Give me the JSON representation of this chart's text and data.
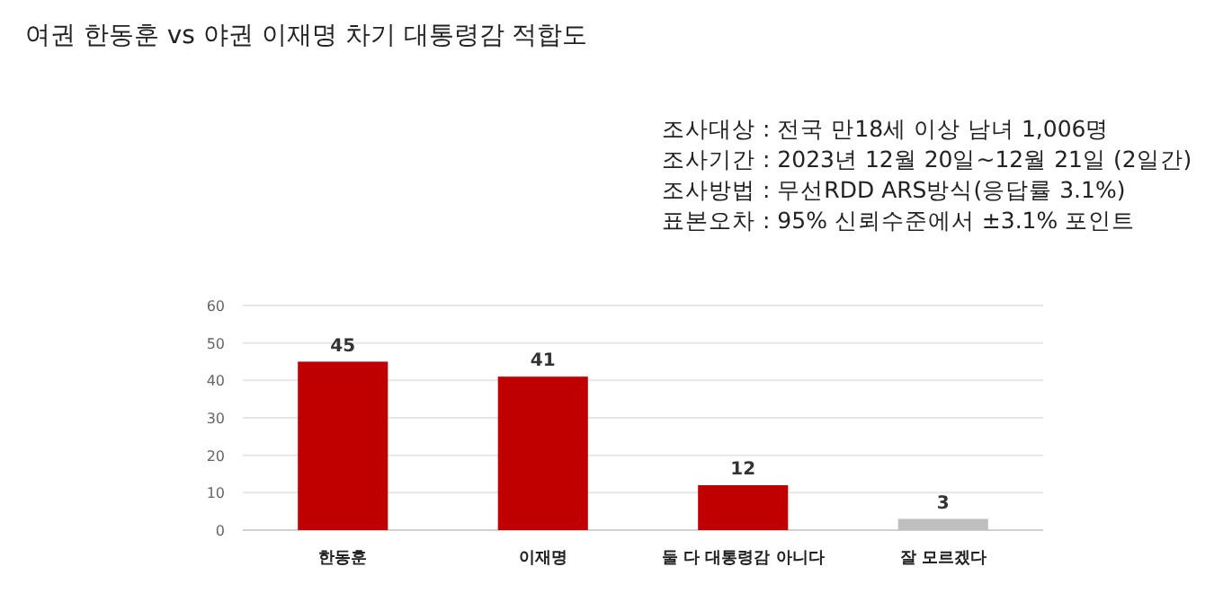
{
  "chart_data": {
    "type": "bar",
    "title": "여권 한동훈 vs 야권 이재명 차기 대통령감 적합도",
    "annotations": [
      "조사대상 : 전국 만18세 이상 남녀 1,006명",
      "조사기간 : 2023년 12월 20일~12월 21일 (2일간)",
      "조사방법 : 무선RDD ARS방식(응답률 3.1%)",
      "표본오차 : 95% 신뢰수준에서 ±3.1% 포인트"
    ],
    "categories": [
      "한동훈",
      "이재명",
      "둘 다 대통령감 아니다",
      "잘 모르겠다"
    ],
    "values": [
      45,
      41,
      12,
      3
    ],
    "colors": [
      "#c00000",
      "#c00000",
      "#c00000",
      "#bfbfbf"
    ],
    "ylim": [
      0,
      60
    ],
    "yticks": [
      0,
      10,
      20,
      30,
      40,
      50,
      60
    ],
    "grid": "y",
    "data_labels": true
  }
}
